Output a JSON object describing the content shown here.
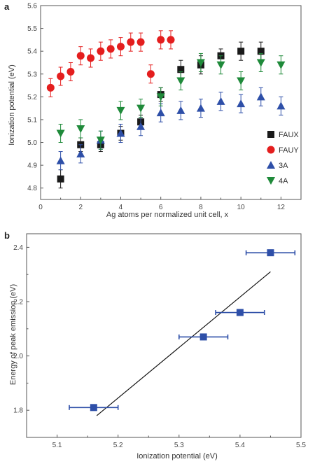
{
  "chart_data": [
    {
      "panel": "a",
      "type": "scatter",
      "xlabel": "Ag atoms per normalized unit cell, x",
      "ylabel": "Ionization potential (eV)",
      "xlim": [
        0,
        13
      ],
      "ylim": [
        4.75,
        5.6
      ],
      "x_ticks": [
        0,
        2,
        4,
        6,
        8,
        10,
        12
      ],
      "y_ticks": [
        4.8,
        4.9,
        5.0,
        5.1,
        5.2,
        5.3,
        5.4,
        5.5,
        5.6
      ],
      "legend_position": "bottom-right",
      "series": [
        {
          "name": "FAUX",
          "marker": "square",
          "color": "#1a1a1a",
          "points": [
            {
              "x": 1,
              "y": 4.84,
              "err": 0.04
            },
            {
              "x": 2,
              "y": 4.99,
              "err": 0.03
            },
            {
              "x": 3,
              "y": 4.99,
              "err": 0.03
            },
            {
              "x": 4,
              "y": 5.04,
              "err": 0.03
            },
            {
              "x": 5,
              "y": 5.09,
              "err": 0.03
            },
            {
              "x": 6,
              "y": 5.21,
              "err": 0.03
            },
            {
              "x": 7,
              "y": 5.32,
              "err": 0.04
            },
            {
              "x": 8,
              "y": 5.34,
              "err": 0.04
            },
            {
              "x": 9,
              "y": 5.38,
              "err": 0.03
            },
            {
              "x": 10,
              "y": 5.4,
              "err": 0.04
            },
            {
              "x": 11,
              "y": 5.4,
              "err": 0.04
            }
          ]
        },
        {
          "name": "FAUY",
          "marker": "circle",
          "color": "#e41e1e",
          "points": [
            {
              "x": 0.5,
              "y": 5.24,
              "err": 0.04
            },
            {
              "x": 1,
              "y": 5.29,
              "err": 0.04
            },
            {
              "x": 1.5,
              "y": 5.31,
              "err": 0.04
            },
            {
              "x": 2,
              "y": 5.38,
              "err": 0.04
            },
            {
              "x": 2.5,
              "y": 5.37,
              "err": 0.04
            },
            {
              "x": 3,
              "y": 5.4,
              "err": 0.04
            },
            {
              "x": 3.5,
              "y": 5.41,
              "err": 0.04
            },
            {
              "x": 4,
              "y": 5.42,
              "err": 0.04
            },
            {
              "x": 4.5,
              "y": 5.44,
              "err": 0.04
            },
            {
              "x": 5,
              "y": 5.44,
              "err": 0.04
            },
            {
              "x": 5.5,
              "y": 5.3,
              "err": 0.04
            },
            {
              "x": 6,
              "y": 5.45,
              "err": 0.04
            },
            {
              "x": 6.5,
              "y": 5.45,
              "err": 0.04
            }
          ]
        },
        {
          "name": "3A",
          "marker": "triangle-up",
          "color": "#2e4fa8",
          "points": [
            {
              "x": 1,
              "y": 4.92,
              "err": 0.04
            },
            {
              "x": 2,
              "y": 4.95,
              "err": 0.04
            },
            {
              "x": 3,
              "y": 5.01,
              "err": 0.04
            },
            {
              "x": 4,
              "y": 5.04,
              "err": 0.04
            },
            {
              "x": 5,
              "y": 5.07,
              "err": 0.04
            },
            {
              "x": 6,
              "y": 5.13,
              "err": 0.04
            },
            {
              "x": 7,
              "y": 5.14,
              "err": 0.04
            },
            {
              "x": 8,
              "y": 5.15,
              "err": 0.04
            },
            {
              "x": 9,
              "y": 5.18,
              "err": 0.04
            },
            {
              "x": 10,
              "y": 5.17,
              "err": 0.04
            },
            {
              "x": 11,
              "y": 5.2,
              "err": 0.04
            },
            {
              "x": 12,
              "y": 5.16,
              "err": 0.04
            }
          ]
        },
        {
          "name": "4A",
          "marker": "triangle-down",
          "color": "#1f8a3a",
          "points": [
            {
              "x": 1,
              "y": 5.04,
              "err": 0.04
            },
            {
              "x": 2,
              "y": 5.06,
              "err": 0.04
            },
            {
              "x": 3,
              "y": 5.01,
              "err": 0.04
            },
            {
              "x": 4,
              "y": 5.14,
              "err": 0.04
            },
            {
              "x": 5,
              "y": 5.15,
              "err": 0.04
            },
            {
              "x": 6,
              "y": 5.2,
              "err": 0.04
            },
            {
              "x": 7,
              "y": 5.27,
              "err": 0.04
            },
            {
              "x": 8,
              "y": 5.35,
              "err": 0.04
            },
            {
              "x": 9,
              "y": 5.34,
              "err": 0.04
            },
            {
              "x": 10,
              "y": 5.27,
              "err": 0.04
            },
            {
              "x": 11,
              "y": 5.35,
              "err": 0.04
            },
            {
              "x": 12,
              "y": 5.34,
              "err": 0.04
            }
          ]
        }
      ]
    },
    {
      "panel": "b",
      "type": "scatter",
      "xlabel": "Ionization potential (eV)",
      "ylabel": "Energy of peak emission (eV)",
      "xlim": [
        5.05,
        5.5
      ],
      "ylim": [
        1.7,
        2.45
      ],
      "x_ticks": [
        5.1,
        5.2,
        5.3,
        5.4,
        5.5
      ],
      "y_ticks": [
        1.8,
        2.0,
        2.2,
        2.4
      ],
      "series": [
        {
          "marker": "square",
          "color": "#2e4fa8",
          "points": [
            {
              "x": 5.16,
              "y": 1.81,
              "xerr": 0.04
            },
            {
              "x": 5.34,
              "y": 2.07,
              "xerr": 0.04
            },
            {
              "x": 5.4,
              "y": 2.16,
              "xerr": 0.04
            },
            {
              "x": 5.45,
              "y": 2.38,
              "xerr": 0.04
            }
          ]
        }
      ],
      "fit_line": {
        "x": [
          5.165,
          5.45
        ],
        "y": [
          1.78,
          2.31
        ],
        "color": "#111111"
      }
    }
  ]
}
